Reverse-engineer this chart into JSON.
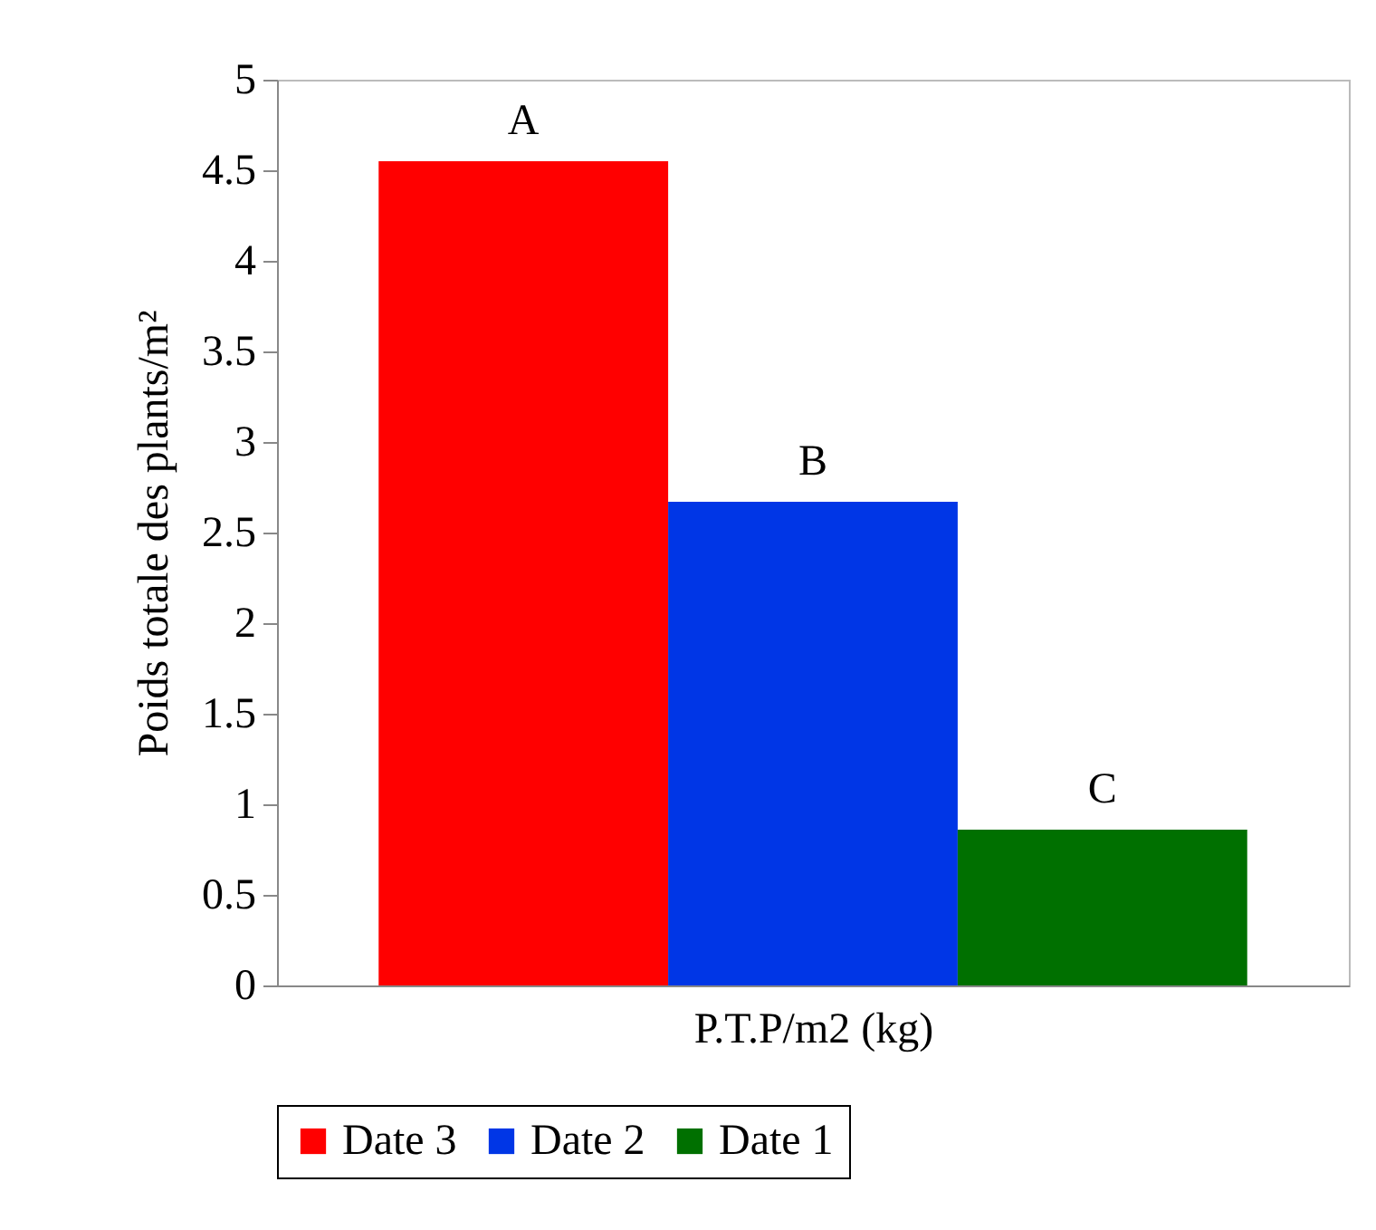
{
  "chart_data": {
    "type": "bar",
    "xlabel": "P.T.P/m2 (kg)",
    "ylabel": "Poids totale des plants/m²",
    "categories": [
      null
    ],
    "series": [
      {
        "name": "Date 3",
        "color": "#ff0000",
        "values": [
          4.55
        ]
      },
      {
        "name": "Date 2",
        "color": "#0036e6",
        "values": [
          2.67
        ]
      },
      {
        "name": "Date 1",
        "color": "#007000",
        "values": [
          0.86
        ]
      }
    ],
    "annotations": [
      "A",
      "B",
      "C"
    ],
    "ylim": [
      0,
      5
    ],
    "yticks": [
      0,
      0.5,
      1,
      1.5,
      2,
      2.5,
      3,
      3.5,
      4,
      4.5,
      5
    ],
    "grid": false,
    "legend": "bottom"
  }
}
